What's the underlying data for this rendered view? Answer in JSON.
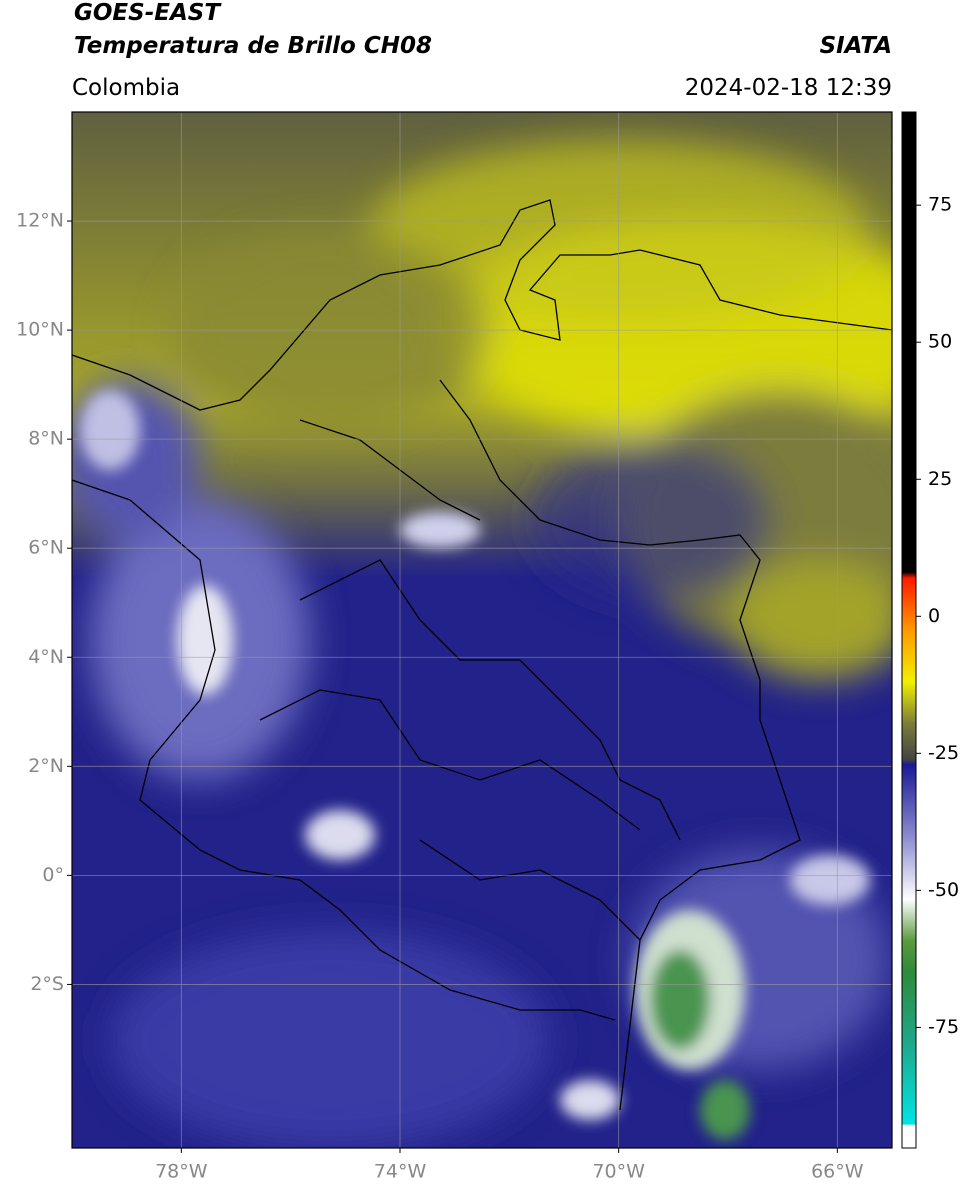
{
  "header": {
    "title_line1": "GOES-EAST",
    "title_line2": "Temperatura de Brillo CH08",
    "source": "SIATA",
    "region": "Colombia",
    "timestamp": "2024-02-18 12:39"
  },
  "map": {
    "xlim": [
      -80,
      -65
    ],
    "ylim": [
      -5,
      14
    ],
    "xticks": [
      {
        "value": -78,
        "label": "78°W"
      },
      {
        "value": -74,
        "label": "74°W"
      },
      {
        "value": -70,
        "label": "70°W"
      },
      {
        "value": -66,
        "label": "66°W"
      }
    ],
    "yticks": [
      {
        "value": 12,
        "label": "12°N"
      },
      {
        "value": 10,
        "label": "10°N"
      },
      {
        "value": 8,
        "label": "8°N"
      },
      {
        "value": 6,
        "label": "6°N"
      },
      {
        "value": 4,
        "label": "4°N"
      },
      {
        "value": 2,
        "label": "2°N"
      },
      {
        "value": 0,
        "label": "0°"
      },
      {
        "value": -2,
        "label": "2°S"
      }
    ],
    "grid": true
  },
  "colorbar": {
    "lim": [
      -97,
      92
    ],
    "ticks": [
      75,
      50,
      25,
      0,
      -25,
      -50,
      -75
    ]
  }
}
